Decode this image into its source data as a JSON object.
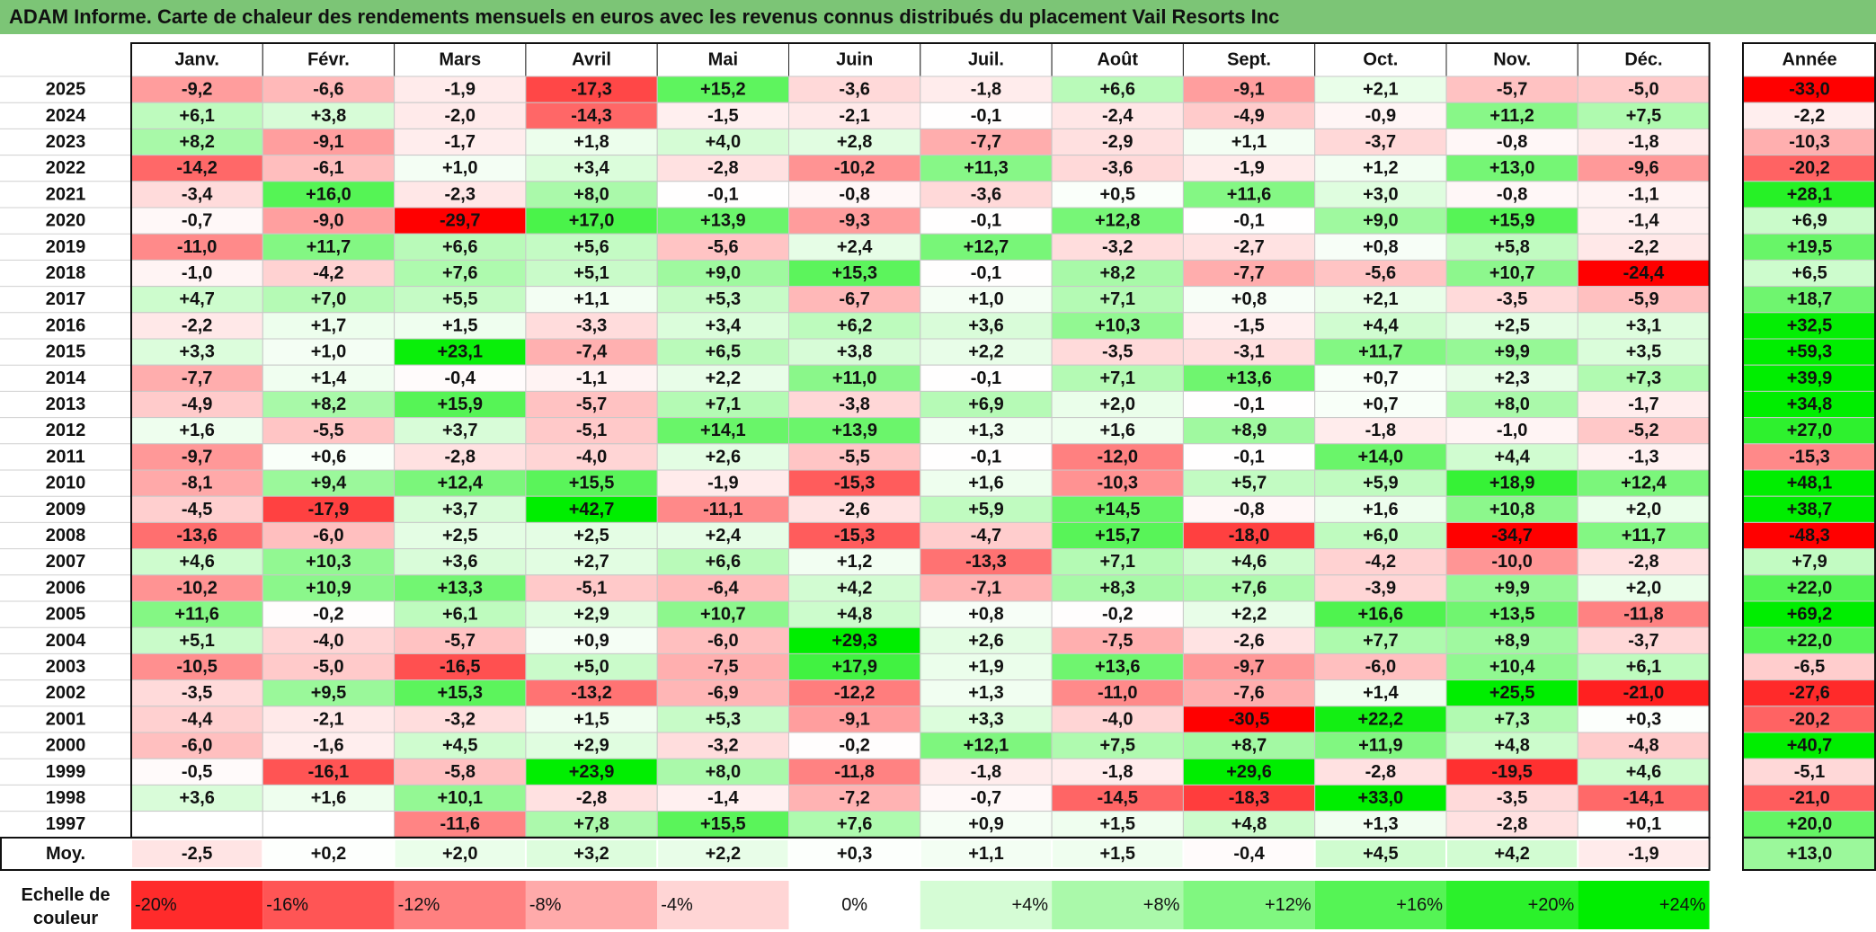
{
  "title": "ADAM Informe. Carte de chaleur des rendements mensuels en euros avec les revenus connus distribués du placement Vail Resorts Inc",
  "chart_data": {
    "type": "heatmap",
    "title": "ADAM Informe. Carte de chaleur des rendements mensuels en euros avec les revenus connus distribués du placement Vail Resorts Inc",
    "months": [
      "Janv.",
      "Févr.",
      "Mars",
      "Avril",
      "Mai",
      "Juin",
      "Juil.",
      "Août",
      "Sept.",
      "Oct.",
      "Nov.",
      "Déc."
    ],
    "year_header": "Année",
    "rows": [
      {
        "year": "2025",
        "values": [
          "-9,2",
          "-6,6",
          "-1,9",
          "-17,3",
          "+15,2",
          "-3,6",
          "-1,8",
          "+6,6",
          "-9,1",
          "+2,1",
          "-5,7",
          "-5,0"
        ],
        "annual": "-33,0"
      },
      {
        "year": "2024",
        "values": [
          "+6,1",
          "+3,8",
          "-2,0",
          "-14,3",
          "-1,5",
          "-2,1",
          "-0,1",
          "-2,4",
          "-4,9",
          "-0,9",
          "+11,2",
          "+7,5"
        ],
        "annual": "-2,2"
      },
      {
        "year": "2023",
        "values": [
          "+8,2",
          "-9,1",
          "-1,7",
          "+1,8",
          "+4,0",
          "+2,8",
          "-7,7",
          "-2,9",
          "+1,1",
          "-3,7",
          "-0,8",
          "-1,8"
        ],
        "annual": "-10,3"
      },
      {
        "year": "2022",
        "values": [
          "-14,2",
          "-6,1",
          "+1,0",
          "+3,4",
          "-2,8",
          "-10,2",
          "+11,3",
          "-3,6",
          "-1,9",
          "+1,2",
          "+13,0",
          "-9,6"
        ],
        "annual": "-20,2"
      },
      {
        "year": "2021",
        "values": [
          "-3,4",
          "+16,0",
          "-2,3",
          "+8,0",
          "-0,1",
          "-0,8",
          "-3,6",
          "+0,5",
          "+11,6",
          "+3,0",
          "-0,8",
          "-1,1"
        ],
        "annual": "+28,1"
      },
      {
        "year": "2020",
        "values": [
          "-0,7",
          "-9,0",
          "-29,7",
          "+17,0",
          "+13,9",
          "-9,3",
          "-0,1",
          "+12,8",
          "-0,1",
          "+9,0",
          "+15,9",
          "-1,4"
        ],
        "annual": "+6,9"
      },
      {
        "year": "2019",
        "values": [
          "-11,0",
          "+11,7",
          "+6,6",
          "+5,6",
          "-5,6",
          "+2,4",
          "+12,7",
          "-3,2",
          "-2,7",
          "+0,8",
          "+5,8",
          "-2,2"
        ],
        "annual": "+19,5"
      },
      {
        "year": "2018",
        "values": [
          "-1,0",
          "-4,2",
          "+7,6",
          "+5,1",
          "+9,0",
          "+15,3",
          "-0,1",
          "+8,2",
          "-7,7",
          "-5,6",
          "+10,7",
          "-24,4"
        ],
        "annual": "+6,5"
      },
      {
        "year": "2017",
        "values": [
          "+4,7",
          "+7,0",
          "+5,5",
          "+1,1",
          "+5,3",
          "-6,7",
          "+1,0",
          "+7,1",
          "+0,8",
          "+2,1",
          "-3,5",
          "-5,9"
        ],
        "annual": "+18,7"
      },
      {
        "year": "2016",
        "values": [
          "-2,2",
          "+1,7",
          "+1,5",
          "-3,3",
          "+3,4",
          "+6,2",
          "+3,6",
          "+10,3",
          "-1,5",
          "+4,4",
          "+2,5",
          "+3,1"
        ],
        "annual": "+32,5"
      },
      {
        "year": "2015",
        "values": [
          "+3,3",
          "+1,0",
          "+23,1",
          "-7,4",
          "+6,5",
          "+3,8",
          "+2,2",
          "-3,5",
          "-3,1",
          "+11,7",
          "+9,9",
          "+3,5"
        ],
        "annual": "+59,3"
      },
      {
        "year": "2014",
        "values": [
          "-7,7",
          "+1,4",
          "-0,4",
          "-1,1",
          "+2,2",
          "+11,0",
          "-0,1",
          "+7,1",
          "+13,6",
          "+0,7",
          "+2,3",
          "+7,3"
        ],
        "annual": "+39,9"
      },
      {
        "year": "2013",
        "values": [
          "-4,9",
          "+8,2",
          "+15,9",
          "-5,7",
          "+7,1",
          "-3,8",
          "+6,9",
          "+2,0",
          "-0,1",
          "+0,7",
          "+8,0",
          "-1,7"
        ],
        "annual": "+34,8"
      },
      {
        "year": "2012",
        "values": [
          "+1,6",
          "-5,5",
          "+3,7",
          "-5,1",
          "+14,1",
          "+13,9",
          "+1,3",
          "+1,6",
          "+8,9",
          "-1,8",
          "-1,0",
          "-5,2"
        ],
        "annual": "+27,0"
      },
      {
        "year": "2011",
        "values": [
          "-9,7",
          "+0,6",
          "-2,8",
          "-4,0",
          "+2,6",
          "-5,5",
          "-0,1",
          "-12,0",
          "-0,1",
          "+14,0",
          "+4,4",
          "-1,3"
        ],
        "annual": "-15,3"
      },
      {
        "year": "2010",
        "values": [
          "-8,1",
          "+9,4",
          "+12,4",
          "+15,5",
          "-1,9",
          "-15,3",
          "+1,6",
          "-10,3",
          "+5,7",
          "+5,9",
          "+18,9",
          "+12,4"
        ],
        "annual": "+48,1"
      },
      {
        "year": "2009",
        "values": [
          "-4,5",
          "-17,9",
          "+3,7",
          "+42,7",
          "-11,1",
          "-2,6",
          "+5,9",
          "+14,5",
          "-0,8",
          "+1,6",
          "+10,8",
          "+2,0"
        ],
        "annual": "+38,7"
      },
      {
        "year": "2008",
        "values": [
          "-13,6",
          "-6,0",
          "+2,5",
          "+2,5",
          "+2,4",
          "-15,3",
          "-4,7",
          "+15,7",
          "-18,0",
          "+6,0",
          "-34,7",
          "+11,7"
        ],
        "annual": "-48,3"
      },
      {
        "year": "2007",
        "values": [
          "+4,6",
          "+10,3",
          "+3,6",
          "+2,7",
          "+6,6",
          "+1,2",
          "-13,3",
          "+7,1",
          "+4,6",
          "-4,2",
          "-10,0",
          "-2,8"
        ],
        "annual": "+7,9"
      },
      {
        "year": "2006",
        "values": [
          "-10,2",
          "+10,9",
          "+13,3",
          "-5,1",
          "-6,4",
          "+4,2",
          "-7,1",
          "+8,3",
          "+7,6",
          "-3,9",
          "+9,9",
          "+2,0"
        ],
        "annual": "+22,0"
      },
      {
        "year": "2005",
        "values": [
          "+11,6",
          "-0,2",
          "+6,1",
          "+2,9",
          "+10,7",
          "+4,8",
          "+0,8",
          "-0,2",
          "+2,2",
          "+16,6",
          "+13,5",
          "-11,8"
        ],
        "annual": "+69,2"
      },
      {
        "year": "2004",
        "values": [
          "+5,1",
          "-4,0",
          "-5,7",
          "+0,9",
          "-6,0",
          "+29,3",
          "+2,6",
          "-7,5",
          "-2,6",
          "+7,7",
          "+8,9",
          "-3,7"
        ],
        "annual": "+22,0"
      },
      {
        "year": "2003",
        "values": [
          "-10,5",
          "-5,0",
          "-16,5",
          "+5,0",
          "-7,5",
          "+17,9",
          "+1,9",
          "+13,6",
          "-9,7",
          "-6,0",
          "+10,4",
          "+6,1"
        ],
        "annual": "-6,5"
      },
      {
        "year": "2002",
        "values": [
          "-3,5",
          "+9,5",
          "+15,3",
          "-13,2",
          "-6,9",
          "-12,2",
          "+1,3",
          "-11,0",
          "-7,6",
          "+1,4",
          "+25,5",
          "-21,0"
        ],
        "annual": "-27,6"
      },
      {
        "year": "2001",
        "values": [
          "-4,4",
          "-2,1",
          "-3,2",
          "+1,5",
          "+5,3",
          "-9,1",
          "+3,3",
          "-4,0",
          "-30,5",
          "+22,2",
          "+7,3",
          "+0,3"
        ],
        "annual": "-20,2"
      },
      {
        "year": "2000",
        "values": [
          "-6,0",
          "-1,6",
          "+4,5",
          "+2,9",
          "-3,2",
          "-0,2",
          "+12,1",
          "+7,5",
          "+8,7",
          "+11,9",
          "+4,8",
          "-4,8"
        ],
        "annual": "+40,7"
      },
      {
        "year": "1999",
        "values": [
          "-0,5",
          "-16,1",
          "-5,8",
          "+23,9",
          "+8,0",
          "-11,8",
          "-1,8",
          "-1,8",
          "+29,6",
          "-2,8",
          "-19,5",
          "+4,6"
        ],
        "annual": "-5,1"
      },
      {
        "year": "1998",
        "values": [
          "+3,6",
          "+1,6",
          "+10,1",
          "-2,8",
          "-1,4",
          "-7,2",
          "-0,7",
          "-14,5",
          "-18,3",
          "+33,0",
          "-3,5",
          "-14,1"
        ],
        "annual": "-21,0"
      },
      {
        "year": "1997",
        "values": [
          "",
          "",
          "-11,6",
          "+7,8",
          "+15,5",
          "+7,6",
          "+0,9",
          "+1,5",
          "+4,8",
          "+1,3",
          "-2,8",
          "+0,1"
        ],
        "annual": "+20,0"
      }
    ],
    "average": {
      "label": "Moy.",
      "values": [
        "-2,5",
        "+0,2",
        "+2,0",
        "+3,2",
        "+2,2",
        "+0,3",
        "+1,1",
        "+1,5",
        "-0,4",
        "+4,5",
        "+4,2",
        "-1,9"
      ],
      "annual": "+13,0"
    },
    "scale": {
      "label_line1": "Echelle de",
      "label_line2": "couleur",
      "steps": [
        "-20%",
        "-16%",
        "-12%",
        "-8%",
        "-4%",
        "0%",
        "+4%",
        "+8%",
        "+12%",
        "+16%",
        "+20%",
        "+24%"
      ]
    },
    "colors": {
      "title_bar": "#7cc576",
      "max_red": "#ff0000",
      "max_green": "#00ee00",
      "neutral": "#ffffff"
    }
  }
}
